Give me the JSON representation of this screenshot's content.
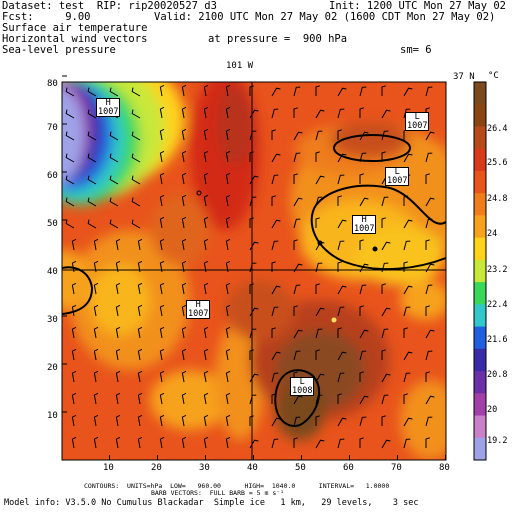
{
  "header": {
    "dataset": "Dataset: test  RIP: rip20020527 d3",
    "init": "Init: 1200 UTC Mon 27 May 02",
    "fcst": "Fcst:     9.00",
    "valid": "Valid: 2100 UTC Mon 27 May 02 (1600 CDT Mon 27 May 02)",
    "field1": "Surface air temperature",
    "field2": "Horizontal wind vectors",
    "pressure": "at pressure =  900 hPa",
    "field3": "Sea-level pressure",
    "smoothing": "sm= 6"
  },
  "map": {
    "cross_section_top": "101 W",
    "cross_section_right": "37 N",
    "colorbar_unit": "°C",
    "colorbar_labels": [
      "26.4",
      "25.6",
      "24.8",
      "24",
      "23.2",
      "22.4",
      "21.6",
      "20.8",
      "20",
      "19.2"
    ],
    "colorbar_colors": [
      "#7a4a1e",
      "#8b4513",
      "#b84a1a",
      "#d93a1a",
      "#e8541c",
      "#ef7d1a",
      "#f7a21c",
      "#ffd21c",
      "#c8e83a",
      "#3ad85a",
      "#30c8c8",
      "#2060e0",
      "#3a2aa8",
      "#6a30a8",
      "#a040a8",
      "#c880c8",
      "#9ea3e8"
    ],
    "x_ticks": [
      "10",
      "20",
      "30",
      "40",
      "50",
      "60",
      "70",
      "80"
    ],
    "y_ticks": [
      "10",
      "20",
      "30",
      "40",
      "50",
      "60",
      "70",
      "80"
    ],
    "pressure_centers": [
      {
        "letter": "H",
        "value": "1007"
      },
      {
        "letter": "L",
        "value": "1007"
      },
      {
        "letter": "L",
        "value": "1007"
      },
      {
        "letter": "H",
        "value": "1007"
      },
      {
        "letter": "H",
        "value": "1007"
      },
      {
        "letter": "L",
        "value": "1008"
      }
    ]
  },
  "footer": {
    "contours": "CONTOURS:  UNITS=hPa  LOW=   960.00      HIGH=  1040.0      INTERVAL=   1.0000",
    "barbs": "BARB VECTORS:  FULL BARB = 5 m s⁻¹",
    "model_info": "Model info: V3.5.0 No Cumulus Blackadar  Simple ice   1 km,   29 levels,    3 sec"
  }
}
